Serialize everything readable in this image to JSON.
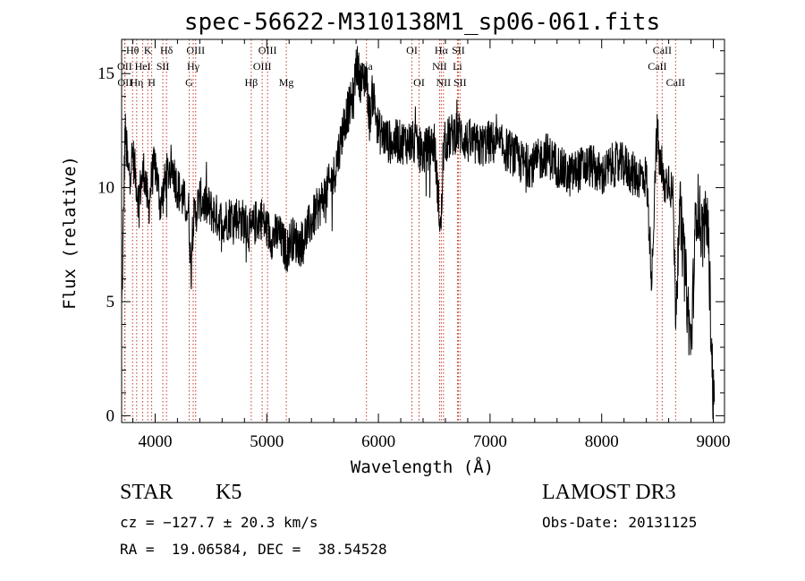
{
  "chart_data": {
    "type": "line",
    "title": "spec-56622-M310138M1_sp06-061.fits",
    "xlabel": "Wavelength (Å)",
    "ylabel": "Flux (relative)",
    "xlim": [
      3700,
      9100
    ],
    "ylim": [
      -0.3,
      16.5
    ],
    "x_ticks": [
      4000,
      5000,
      6000,
      7000,
      8000,
      9000
    ],
    "y_ticks": [
      0,
      5,
      10,
      15
    ],
    "x_tick_labels": [
      "4000",
      "5000",
      "6000",
      "7000",
      "8000",
      "9000"
    ],
    "y_tick_labels": [
      "0",
      "5",
      "10",
      "15"
    ],
    "series": [
      {
        "name": "spectrum",
        "color": "#000000",
        "x": [
          3700,
          3715,
          3730,
          3760,
          3800,
          3850,
          3900,
          3940,
          3970,
          4000,
          4050,
          4100,
          4150,
          4200,
          4250,
          4300,
          4320,
          4340,
          4400,
          4500,
          4600,
          4700,
          4800,
          4860,
          4900,
          4950,
          5000,
          5050,
          5100,
          5150,
          5180,
          5220,
          5300,
          5400,
          5500,
          5600,
          5700,
          5780,
          5800,
          5850,
          5890,
          5920,
          5950,
          6000,
          6100,
          6200,
          6300,
          6400,
          6500,
          6560,
          6580,
          6600,
          6700,
          6800,
          6900,
          7000,
          7100,
          7200,
          7300,
          7400,
          7500,
          7600,
          7700,
          7800,
          7900,
          8000,
          8100,
          8200,
          8300,
          8400,
          8450,
          8480,
          8498,
          8520,
          8542,
          8560,
          8600,
          8640,
          8662,
          8700,
          8750,
          8800,
          8850,
          8900,
          8950,
          9000
        ],
        "values": [
          4.5,
          8.0,
          12.5,
          10.5,
          11.5,
          9.5,
          10.8,
          9.0,
          10.5,
          11.0,
          9.2,
          10.5,
          11.0,
          10.0,
          9.5,
          9.0,
          6.5,
          8.5,
          9.5,
          9.0,
          8.5,
          8.8,
          8.5,
          8.0,
          8.5,
          8.7,
          8.2,
          7.8,
          8.0,
          7.5,
          7.2,
          7.8,
          7.5,
          8.5,
          9.5,
          10.5,
          13.0,
          14.0,
          15.5,
          14.5,
          15.0,
          13.0,
          14.2,
          12.5,
          12.0,
          12.0,
          12.0,
          11.5,
          12.0,
          8.0,
          11.5,
          12.0,
          12.5,
          12.0,
          11.8,
          12.0,
          11.8,
          11.5,
          11.0,
          11.0,
          11.5,
          11.0,
          10.5,
          10.8,
          11.0,
          10.5,
          11.0,
          11.0,
          10.5,
          10.5,
          6.0,
          11.0,
          12.5,
          11.0,
          10.5,
          10.0,
          10.5,
          9.5,
          4.5,
          9.0,
          6.0,
          3.0,
          9.5,
          8.0,
          8.5,
          0.6
        ]
      }
    ],
    "emission_lines": [
      {
        "label": "Hθ",
        "wavelength": 3798,
        "row": 0
      },
      {
        "label": "K",
        "wavelength": 3934,
        "row": 0
      },
      {
        "label": "Hδ",
        "wavelength": 4102,
        "row": 0
      },
      {
        "label": "OII",
        "wavelength": 3727,
        "row": 1
      },
      {
        "label": "HeI",
        "wavelength": 3889,
        "row": 1
      },
      {
        "label": "SII",
        "wavelength": 4069,
        "row": 1
      },
      {
        "label": "OIII",
        "wavelength": 4363,
        "row": 0
      },
      {
        "label": "Hγ",
        "wavelength": 4341,
        "row": 1
      },
      {
        "label": "G",
        "wavelength": 4305,
        "row": 2
      },
      {
        "label": "OII",
        "wavelength": 3730,
        "row": 2
      },
      {
        "label": "Hη",
        "wavelength": 3835,
        "row": 2
      },
      {
        "label": "H",
        "wavelength": 3969,
        "row": 2
      },
      {
        "label": "OIII",
        "wavelength": 5007,
        "row": 0
      },
      {
        "label": "OIII",
        "wavelength": 4959,
        "row": 1
      },
      {
        "label": "Hβ",
        "wavelength": 4861,
        "row": 2
      },
      {
        "label": "Mg",
        "wavelength": 5175,
        "row": 2
      },
      {
        "label": "Na",
        "wavelength": 5893,
        "row": 1
      },
      {
        "label": "OI",
        "wavelength": 6300,
        "row": 0
      },
      {
        "label": "OI",
        "wavelength": 6364,
        "row": 2
      },
      {
        "label": "Hα",
        "wavelength": 6563,
        "row": 0
      },
      {
        "label": "SII",
        "wavelength": 6716,
        "row": 0
      },
      {
        "label": "NII",
        "wavelength": 6548,
        "row": 1
      },
      {
        "label": "Li",
        "wavelength": 6708,
        "row": 1
      },
      {
        "label": "NII",
        "wavelength": 6583,
        "row": 2
      },
      {
        "label": "SII",
        "wavelength": 6731,
        "row": 2
      },
      {
        "label": "CaII",
        "wavelength": 8542,
        "row": 0
      },
      {
        "label": "CaII",
        "wavelength": 8498,
        "row": 1
      },
      {
        "label": "CaII",
        "wavelength": 8662,
        "row": 2
      }
    ]
  },
  "info": {
    "class_label": "STAR",
    "subclass_label": "K5",
    "survey": "LAMOST DR3",
    "redshift": "cz = −127.7 ± 20.3 km/s",
    "obs_date": "Obs-Date: 20131125",
    "coords": "RA =  19.06584, DEC =  38.54528"
  },
  "colors": {
    "line_marker": "#c0392b",
    "spectrum": "#000000",
    "axes": "#000000"
  }
}
